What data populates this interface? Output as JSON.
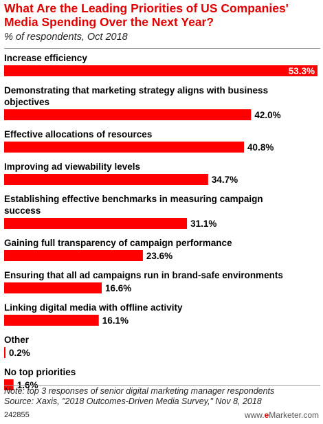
{
  "title": "What Are the Leading Priorities of US Companies' Media Spending Over the Next Year?",
  "subtitle": "% of respondents, Oct 2018",
  "note": "Note: top 3 responses of senior digital marketing manager respondents",
  "source": "Source: Xaxis, \"2018 Outcomes-Driven Media Survey,\" Nov 8, 2018",
  "chart_id": "242855",
  "brand": {
    "prefix": "www.",
    "e": "e",
    "name": "Marketer",
    "suffix": ".com"
  },
  "colors": {
    "bar": "#ff0000",
    "title": "#e10000"
  },
  "chart_data": {
    "type": "bar",
    "orientation": "horizontal",
    "categories": [
      [
        "Increase efficiency"
      ],
      [
        "Demonstrating that marketing strategy aligns with business",
        "objectives"
      ],
      [
        "Effective allocations of resources"
      ],
      [
        "Improving ad viewability levels"
      ],
      [
        "Establishing effective benchmarks in measuring campaign",
        "success"
      ],
      [
        "Gaining full transparency of campaign performance"
      ],
      [
        "Ensuring that all ad campaigns run in brand-safe environments"
      ],
      [
        "Linking digital media with offline activity"
      ],
      [
        "Other"
      ],
      [
        "No top priorities"
      ]
    ],
    "values": [
      53.3,
      42.0,
      40.8,
      34.7,
      31.1,
      23.6,
      16.6,
      16.1,
      0.2,
      1.6
    ],
    "value_labels": [
      "53.3%",
      "42.0%",
      "40.8%",
      "34.7%",
      "31.1%",
      "23.6%",
      "16.6%",
      "16.1%",
      "0.2%",
      "1.6%"
    ],
    "xlim": [
      0,
      53.3
    ],
    "grid": false,
    "legend": "none"
  }
}
